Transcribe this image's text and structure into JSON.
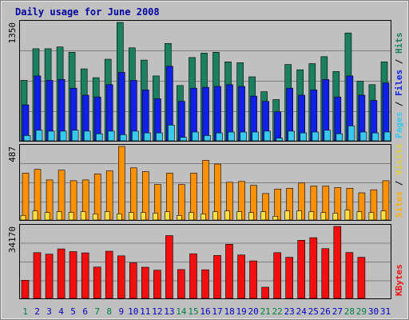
{
  "chart_data": {
    "type": "bar",
    "title": "Daily usage for June 2008",
    "x": [
      "1",
      "2",
      "3",
      "4",
      "5",
      "6",
      "7",
      "8",
      "9",
      "10",
      "11",
      "12",
      "13",
      "14",
      "15",
      "16",
      "17",
      "18",
      "19",
      "20",
      "21",
      "22",
      "23",
      "24",
      "25",
      "26",
      "27",
      "28",
      "29",
      "30",
      "31"
    ],
    "weekend_days": [
      "1",
      "7",
      "8",
      "14",
      "15",
      "21",
      "22",
      "28",
      "29"
    ],
    "panels": [
      {
        "id": "hits",
        "ymax": 1350,
        "ymax_label": "1350",
        "legend": [
          "Pages",
          "/",
          "Files",
          "/",
          "Hits"
        ],
        "series": [
          {
            "name": "Hits",
            "color": "#1a8060",
            "values": [
              690,
              1050,
              1050,
              1070,
              1010,
              820,
              720,
              930,
              1350,
              1060,
              920,
              740,
              1110,
              630,
              950,
              1000,
              1010,
              900,
              890,
              730,
              560,
              470,
              870,
              810,
              880,
              960,
              790,
              1230,
              680,
              640,
              900
            ]
          },
          {
            "name": "Files",
            "color": "#1020e8",
            "values": [
              410,
              740,
              690,
              700,
              600,
              520,
              500,
              640,
              780,
              690,
              580,
              480,
              850,
              450,
              600,
              610,
              620,
              640,
              620,
              510,
              450,
              330,
              600,
              520,
              580,
              700,
              500,
              740,
              520,
              460,
              660
            ]
          },
          {
            "name": "Pages",
            "color": "#38c8f0",
            "values": [
              60,
              120,
              110,
              110,
              120,
              110,
              80,
              110,
              70,
              110,
              90,
              90,
              180,
              40,
              100,
              60,
              90,
              100,
              100,
              100,
              110,
              30,
              110,
              90,
              100,
              120,
              80,
              170,
              100,
              90,
              100
            ]
          }
        ]
      },
      {
        "id": "visits",
        "ymax": 487,
        "ymax_label": "487",
        "legend": [
          "Sites",
          "/",
          "Visits"
        ],
        "series": [
          {
            "name": "Visits",
            "color": "#ff9000",
            "values": [
              310,
              335,
              265,
              330,
              260,
              265,
              305,
              325,
              487,
              345,
              320,
              235,
              310,
              235,
              310,
              395,
              370,
              250,
              255,
              230,
              175,
              205,
              210,
              245,
              225,
              225,
              215,
              210,
              180,
              200,
              260
            ]
          },
          {
            "name": "Sites",
            "color": "#ffe040",
            "values": [
              30,
              60,
              50,
              55,
              50,
              55,
              40,
              55,
              40,
              50,
              50,
              45,
              55,
              30,
              50,
              40,
              55,
              60,
              55,
              50,
              55,
              25,
              60,
              60,
              55,
              50,
              45,
              65,
              55,
              50,
              60
            ]
          }
        ]
      },
      {
        "id": "kbytes",
        "ymax": 34170,
        "ymax_label": "34170",
        "legend": [
          "KBytes"
        ],
        "series": [
          {
            "name": "KBytes",
            "color": "#f01010",
            "values": [
              8600,
              21700,
              21000,
              23500,
              22200,
              21600,
              14900,
              22400,
              20200,
              16900,
              14800,
              13400,
              29800,
              13700,
              21200,
              13600,
              20400,
              25700,
              20600,
              17800,
              5300,
              21700,
              19500,
              27600,
              28800,
              23600,
              34170,
              21800,
              19500,
              null,
              0
            ]
          }
        ]
      }
    ],
    "colors": {
      "frame": "#c0c0c0",
      "plot_bg": "#c0c0c0",
      "title": "#0000a0",
      "weekday_label": "#0000c0",
      "weekend_label": "#008040"
    }
  }
}
